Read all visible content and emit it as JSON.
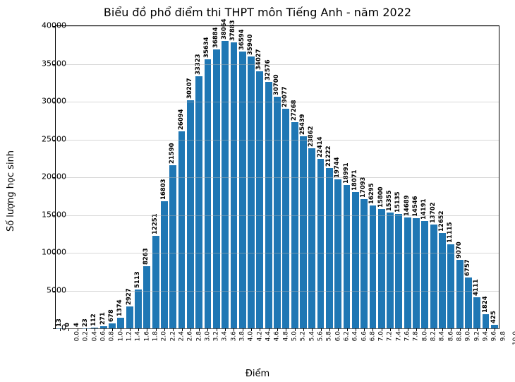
{
  "chart": {
    "type": "bar",
    "title": "Biểu đồ phổ điểm thi THPT môn Tiếng Anh - năm 2022",
    "title_fontsize": 16,
    "xlabel": "Điểm",
    "ylabel": "Số lượng học sinh",
    "label_fontsize": 13,
    "background_color": "#ffffff",
    "grid_color": "#b0b0b0",
    "bar_color": "#1f77b4",
    "border_color": "#000000",
    "ylim": [
      0,
      40000
    ],
    "ytick_step": 5000,
    "yticks": [
      0,
      5000,
      10000,
      15000,
      20000,
      25000,
      30000,
      35000,
      40000
    ],
    "bar_width": 0.8,
    "value_label_fontsize": 8.5,
    "tick_fontsize": 9,
    "categories": [
      "0.0",
      "0.2",
      "0.4",
      "0.6",
      "0.8",
      "1.0",
      "1.2",
      "1.4",
      "1.6",
      "1.8",
      "2.0",
      "2.2",
      "2.4",
      "2.6",
      "2.8",
      "3.0",
      "3.2",
      "3.4",
      "3.6",
      "3.8",
      "4.0",
      "4.2",
      "4.4",
      "4.6",
      "4.8",
      "5.0",
      "5.2",
      "5.4",
      "5.6",
      "5.8",
      "6.0",
      "6.2",
      "6.4",
      "6.6",
      "6.8",
      "7.0",
      "7.2",
      "7.4",
      "7.6",
      "7.8",
      "8.0",
      "8.2",
      "8.4",
      "8.6",
      "8.8",
      "9.0",
      "9.2",
      "9.4",
      "9.6",
      "9.8",
      "10.0"
    ],
    "values": [
      13,
      0,
      4,
      23,
      112,
      271,
      678,
      1374,
      2927,
      5113,
      8263,
      12251,
      16803,
      21590,
      26094,
      30207,
      33323,
      35634,
      36884,
      38064,
      37883,
      36594,
      35940,
      34027,
      32576,
      30700,
      29077,
      27268,
      25439,
      23862,
      22414,
      21222,
      19744,
      18991,
      18071,
      17093,
      16295,
      15800,
      15355,
      15135,
      14689,
      14546,
      14191,
      13702,
      12652,
      11115,
      9070,
      6757,
      4111,
      1824,
      425
    ]
  }
}
